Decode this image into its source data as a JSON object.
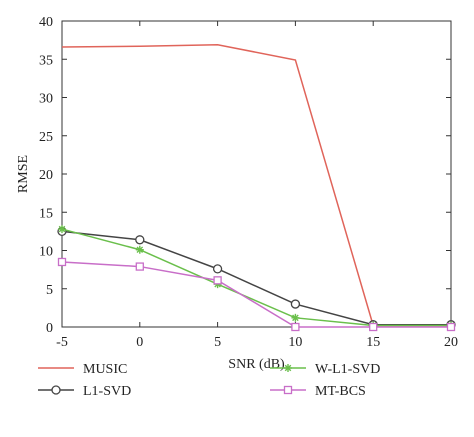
{
  "chart_data": {
    "type": "line",
    "title": "",
    "xlabel": "SNR (dB)",
    "ylabel": "RMSE",
    "x": [
      -5,
      0,
      5,
      10,
      15,
      20
    ],
    "xlim": [
      -5,
      20
    ],
    "ylim": [
      0,
      40
    ],
    "xticks": [
      -5,
      0,
      5,
      10,
      15,
      20
    ],
    "yticks": [
      0,
      5,
      10,
      15,
      20,
      25,
      30,
      35,
      40
    ],
    "grid": false,
    "legend_position": "bottom",
    "series": [
      {
        "name": "MUSIC",
        "color": "#e0645a",
        "marker": "none",
        "values": [
          36.6,
          36.7,
          36.9,
          34.9,
          0.2,
          0.2
        ]
      },
      {
        "name": "L1-SVD",
        "color": "#444444",
        "marker": "circle",
        "values": [
          12.5,
          11.4,
          7.6,
          3.0,
          0.3,
          0.3
        ]
      },
      {
        "name": "W-L1-SVD",
        "color": "#6abf4b",
        "marker": "star",
        "values": [
          12.8,
          10.1,
          5.6,
          1.2,
          0.2,
          0.2
        ]
      },
      {
        "name": "MT-BCS",
        "color": "#c86ec8",
        "marker": "square",
        "values": [
          8.5,
          7.9,
          6.1,
          0.0,
          0.0,
          0.0
        ]
      }
    ]
  }
}
